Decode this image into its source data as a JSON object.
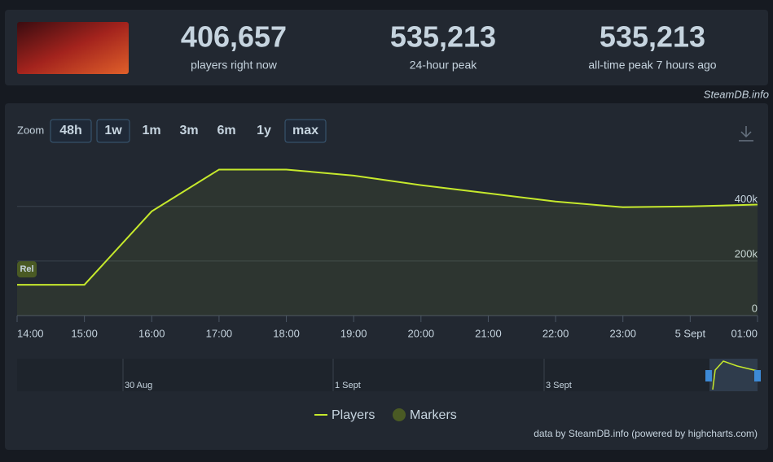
{
  "header": {
    "stats": [
      {
        "value": "406,657",
        "label": "players right now"
      },
      {
        "value": "535,213",
        "label": "24-hour peak"
      },
      {
        "value": "535,213",
        "label": "all-time peak 7 hours ago"
      }
    ],
    "source": "SteamDB.info"
  },
  "zoom": {
    "label": "Zoom",
    "buttons": [
      {
        "text": "48h",
        "active": true
      },
      {
        "text": "1w",
        "active": true
      },
      {
        "text": "1m",
        "active": false
      },
      {
        "text": "3m",
        "active": false
      },
      {
        "text": "6m",
        "active": false
      },
      {
        "text": "1y",
        "active": false
      },
      {
        "text": "max",
        "active": true
      }
    ]
  },
  "chart_data": {
    "type": "area",
    "categories": [
      "14:00",
      "15:00",
      "16:00",
      "17:00",
      "18:00",
      "19:00",
      "20:00",
      "21:00",
      "22:00",
      "23:00",
      "5 Sept",
      "01:00"
    ],
    "series": [
      {
        "name": "Players",
        "color": "#c6e92c",
        "values": [
          113000,
          113000,
          382000,
          535000,
          535000,
          513000,
          478000,
          448000,
          418000,
          397000,
          400000,
          406657
        ]
      }
    ],
    "marker_series": {
      "name": "Markers",
      "color": "#4a5a24",
      "label": "Rel"
    },
    "ylim": [
      0,
      590000
    ],
    "yticks": [
      0,
      {
        "value": 200000,
        "label": "200k"
      },
      {
        "value": 400000,
        "label": "400k"
      }
    ],
    "grid": true
  },
  "navigator": {
    "labels": [
      "30 Aug",
      "1 Sept",
      "3 Sept"
    ]
  },
  "credits": "data by SteamDB.info (powered by highcharts.com)"
}
